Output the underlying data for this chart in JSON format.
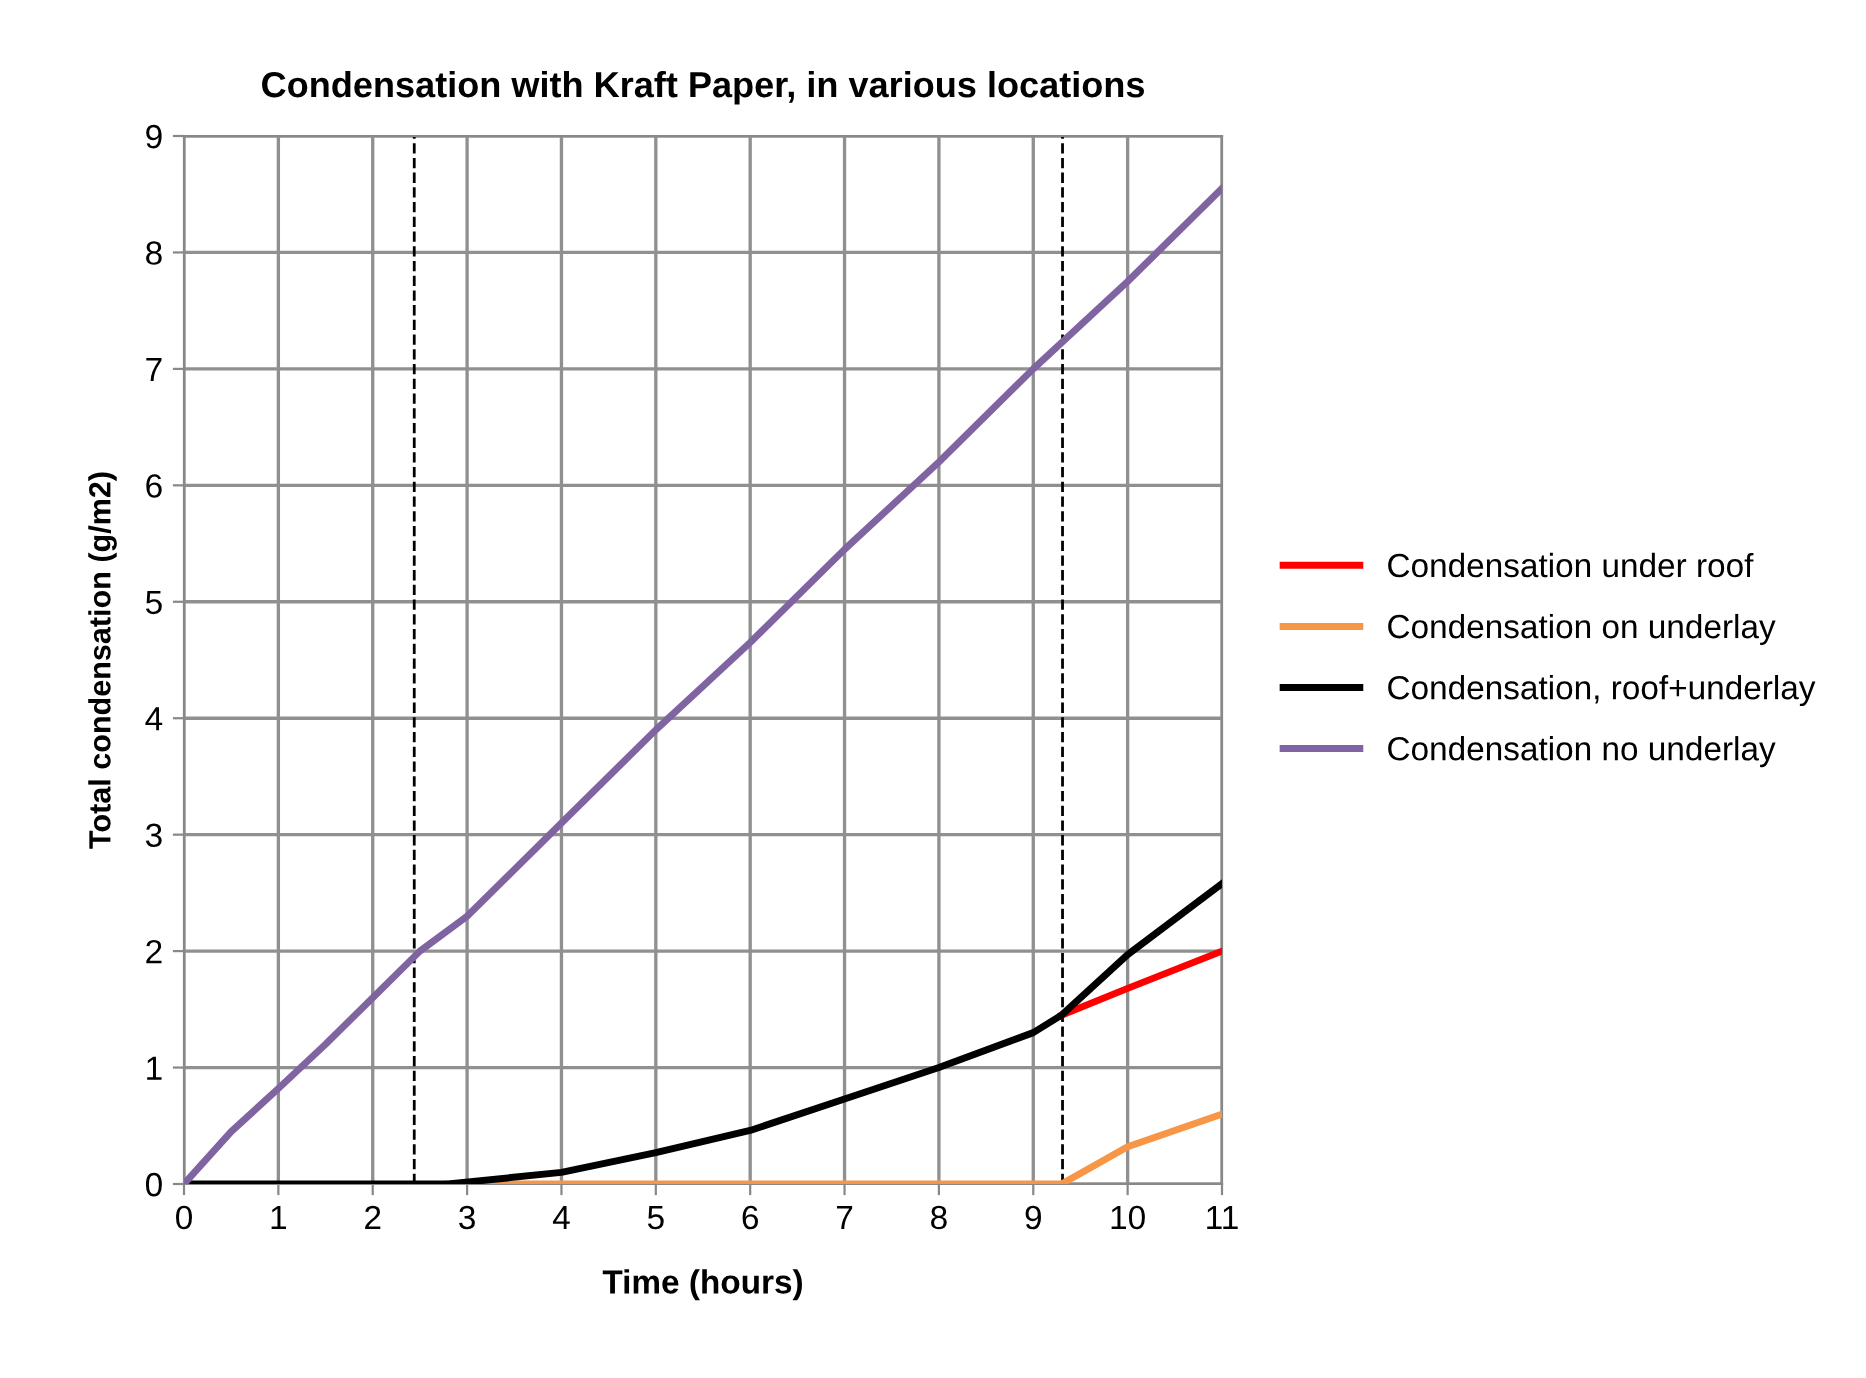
{
  "chart_data": {
    "type": "line",
    "title": "Condensation with Kraft Paper, in various locations",
    "xlabel": "Time (hours)",
    "ylabel": "Total condensation (g/m2)",
    "xlim": [
      0,
      11
    ],
    "xticks": [
      0,
      1,
      2,
      3,
      4,
      5,
      6,
      7,
      8,
      9,
      10,
      11
    ],
    "ylim": [
      0,
      9
    ],
    "yticks": [
      0,
      1,
      2,
      3,
      4,
      5,
      6,
      7,
      8,
      9
    ],
    "grid": true,
    "legend": "right",
    "marker": "none",
    "line_style": "solid",
    "series": [
      {
        "name": "Condensation under roof",
        "color": "#ff0000",
        "x": [
          9.3,
          10,
          11
        ],
        "values": [
          1.45,
          1.68,
          2.0
        ]
      },
      {
        "name": "Condensation on underlay",
        "color": "#f79646",
        "x": [
          2.8,
          4,
          5,
          6,
          7,
          8,
          9,
          9.3,
          10,
          11
        ],
        "values": [
          0,
          0,
          0,
          0,
          0,
          0,
          0,
          0,
          0.32,
          0.6
        ]
      },
      {
        "name": "Condensation, roof+underlay",
        "color": "#000000",
        "x": [
          0,
          1,
          2,
          2.8,
          4,
          5,
          6,
          7,
          8,
          9,
          9.3,
          10,
          11
        ],
        "values": [
          0,
          0,
          0,
          0,
          0.1,
          0.27,
          0.46,
          0.73,
          1.0,
          1.3,
          1.45,
          1.97,
          2.58
        ]
      },
      {
        "name": "Condensation no underlay",
        "color": "#8064a2",
        "x": [
          0,
          0.5,
          1,
          1.5,
          2,
          2.5,
          3,
          4,
          5,
          6,
          7,
          8,
          9,
          10,
          11
        ],
        "values": [
          0,
          0.45,
          0.82,
          1.2,
          1.6,
          2.0,
          2.3,
          3.1,
          3.9,
          4.65,
          5.45,
          6.2,
          7.0,
          7.75,
          8.55
        ]
      }
    ],
    "ref_lines": [
      {
        "axis": "x",
        "value": 2.44,
        "color": "#000000",
        "line_style": "dashed"
      },
      {
        "axis": "x",
        "value": 9.31,
        "color": "#000000",
        "line_style": "dashed"
      }
    ]
  }
}
